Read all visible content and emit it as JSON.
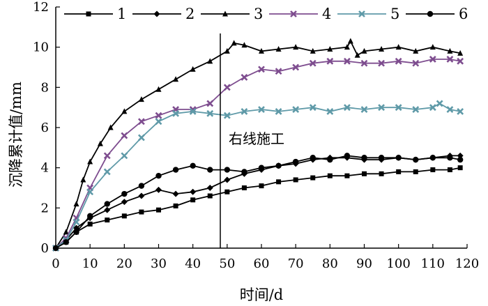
{
  "chart_data": {
    "type": "line",
    "xlabel": "时间/d",
    "ylabel": "沉降累计值/mm",
    "xlim": [
      0,
      120
    ],
    "ylim": [
      0,
      12
    ],
    "xticks": [
      0,
      10,
      20,
      30,
      40,
      50,
      60,
      70,
      80,
      90,
      100,
      110,
      120
    ],
    "yticks": [
      0,
      2,
      4,
      6,
      8,
      10,
      12
    ],
    "grid": false,
    "legend_position": "top",
    "annotation": {
      "text": "右线施工",
      "x": 48
    },
    "series": [
      {
        "name": "1",
        "color": "#000000",
        "marker": "square",
        "points": [
          [
            0,
            0
          ],
          [
            3,
            0.3
          ],
          [
            6,
            0.8
          ],
          [
            10,
            1.2
          ],
          [
            15,
            1.4
          ],
          [
            20,
            1.6
          ],
          [
            25,
            1.8
          ],
          [
            30,
            1.9
          ],
          [
            35,
            2.1
          ],
          [
            40,
            2.4
          ],
          [
            45,
            2.6
          ],
          [
            50,
            2.8
          ],
          [
            55,
            3.0
          ],
          [
            60,
            3.1
          ],
          [
            65,
            3.3
          ],
          [
            70,
            3.4
          ],
          [
            75,
            3.5
          ],
          [
            80,
            3.6
          ],
          [
            85,
            3.6
          ],
          [
            90,
            3.7
          ],
          [
            95,
            3.7
          ],
          [
            100,
            3.8
          ],
          [
            105,
            3.8
          ],
          [
            110,
            3.9
          ],
          [
            115,
            3.9
          ],
          [
            118,
            4.0
          ]
        ]
      },
      {
        "name": "2",
        "color": "#000000",
        "marker": "diamond",
        "points": [
          [
            0,
            0
          ],
          [
            3,
            0.4
          ],
          [
            6,
            1.0
          ],
          [
            10,
            1.5
          ],
          [
            15,
            1.9
          ],
          [
            20,
            2.3
          ],
          [
            25,
            2.6
          ],
          [
            30,
            2.9
          ],
          [
            35,
            2.7
          ],
          [
            40,
            2.8
          ],
          [
            45,
            3.0
          ],
          [
            50,
            3.4
          ],
          [
            55,
            3.7
          ],
          [
            60,
            3.9
          ],
          [
            65,
            4.1
          ],
          [
            70,
            4.2
          ],
          [
            75,
            4.4
          ],
          [
            80,
            4.5
          ],
          [
            85,
            4.5
          ],
          [
            90,
            4.4
          ],
          [
            95,
            4.4
          ],
          [
            100,
            4.5
          ],
          [
            105,
            4.4
          ],
          [
            110,
            4.5
          ],
          [
            115,
            4.6
          ],
          [
            118,
            4.6
          ]
        ]
      },
      {
        "name": "3",
        "color": "#000000",
        "marker": "triangle",
        "points": [
          [
            0,
            0
          ],
          [
            3,
            0.8
          ],
          [
            6,
            2.2
          ],
          [
            8,
            3.4
          ],
          [
            10,
            4.3
          ],
          [
            13,
            5.2
          ],
          [
            16,
            6.0
          ],
          [
            20,
            6.8
          ],
          [
            25,
            7.4
          ],
          [
            30,
            7.9
          ],
          [
            35,
            8.4
          ],
          [
            40,
            8.9
          ],
          [
            45,
            9.3
          ],
          [
            50,
            9.8
          ],
          [
            52,
            10.2
          ],
          [
            55,
            10.1
          ],
          [
            60,
            9.8
          ],
          [
            65,
            9.9
          ],
          [
            70,
            10.0
          ],
          [
            75,
            9.8
          ],
          [
            80,
            9.9
          ],
          [
            85,
            10.0
          ],
          [
            86,
            10.3
          ],
          [
            88,
            9.6
          ],
          [
            90,
            9.8
          ],
          [
            95,
            9.9
          ],
          [
            100,
            10.0
          ],
          [
            105,
            9.8
          ],
          [
            110,
            10.0
          ],
          [
            115,
            9.8
          ],
          [
            118,
            9.7
          ]
        ]
      },
      {
        "name": "4",
        "color": "#7e4d8f",
        "marker": "x",
        "points": [
          [
            0,
            0
          ],
          [
            3,
            0.5
          ],
          [
            6,
            1.5
          ],
          [
            10,
            3.0
          ],
          [
            15,
            4.6
          ],
          [
            20,
            5.6
          ],
          [
            25,
            6.3
          ],
          [
            30,
            6.6
          ],
          [
            35,
            6.9
          ],
          [
            40,
            6.9
          ],
          [
            45,
            7.2
          ],
          [
            50,
            8.0
          ],
          [
            55,
            8.5
          ],
          [
            60,
            8.9
          ],
          [
            65,
            8.8
          ],
          [
            70,
            9.0
          ],
          [
            75,
            9.2
          ],
          [
            80,
            9.3
          ],
          [
            85,
            9.3
          ],
          [
            90,
            9.2
          ],
          [
            95,
            9.2
          ],
          [
            100,
            9.3
          ],
          [
            105,
            9.2
          ],
          [
            110,
            9.4
          ],
          [
            115,
            9.4
          ],
          [
            118,
            9.3
          ]
        ]
      },
      {
        "name": "5",
        "color": "#5f9aa8",
        "marker": "x",
        "points": [
          [
            0,
            0
          ],
          [
            3,
            0.4
          ],
          [
            6,
            1.3
          ],
          [
            10,
            2.8
          ],
          [
            15,
            3.8
          ],
          [
            20,
            4.6
          ],
          [
            25,
            5.5
          ],
          [
            30,
            6.3
          ],
          [
            35,
            6.7
          ],
          [
            40,
            6.8
          ],
          [
            45,
            6.7
          ],
          [
            50,
            6.6
          ],
          [
            55,
            6.8
          ],
          [
            60,
            6.9
          ],
          [
            65,
            6.8
          ],
          [
            70,
            6.9
          ],
          [
            75,
            7.0
          ],
          [
            80,
            6.8
          ],
          [
            85,
            7.0
          ],
          [
            90,
            6.9
          ],
          [
            95,
            7.0
          ],
          [
            100,
            7.0
          ],
          [
            105,
            6.9
          ],
          [
            110,
            7.0
          ],
          [
            112,
            7.2
          ],
          [
            115,
            6.9
          ],
          [
            118,
            6.8
          ]
        ]
      },
      {
        "name": "6",
        "color": "#000000",
        "marker": "circle",
        "points": [
          [
            0,
            0
          ],
          [
            3,
            0.3
          ],
          [
            6,
            0.8
          ],
          [
            10,
            1.6
          ],
          [
            15,
            2.2
          ],
          [
            20,
            2.7
          ],
          [
            25,
            3.1
          ],
          [
            30,
            3.6
          ],
          [
            35,
            3.9
          ],
          [
            40,
            4.1
          ],
          [
            45,
            3.9
          ],
          [
            50,
            3.9
          ],
          [
            55,
            3.8
          ],
          [
            60,
            4.0
          ],
          [
            65,
            4.1
          ],
          [
            70,
            4.3
          ],
          [
            75,
            4.5
          ],
          [
            80,
            4.4
          ],
          [
            85,
            4.6
          ],
          [
            90,
            4.5
          ],
          [
            95,
            4.5
          ],
          [
            100,
            4.5
          ],
          [
            105,
            4.4
          ],
          [
            110,
            4.5
          ],
          [
            115,
            4.5
          ],
          [
            118,
            4.4
          ]
        ]
      }
    ]
  }
}
